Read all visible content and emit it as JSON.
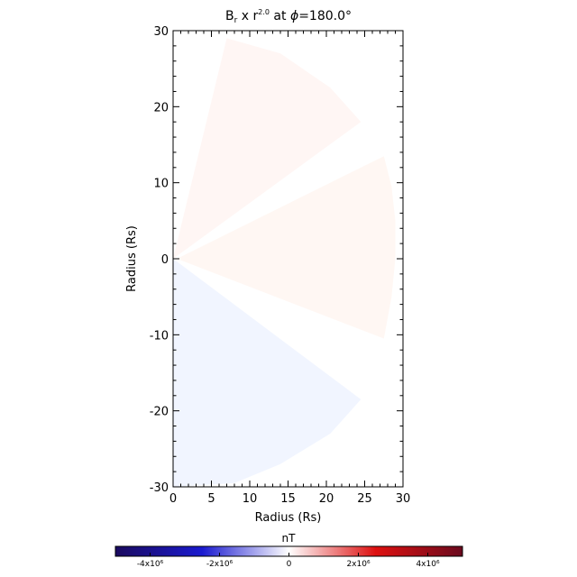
{
  "chart_data": {
    "type": "heatmap",
    "title": {
      "main": "B",
      "sub": "r",
      "mid": " x r",
      "sup": "2.0",
      "tail": " at ",
      "phi": "ϕ",
      "phi_value": "=180.0°"
    },
    "xlabel": "Radius (Rs)",
    "ylabel": "Radius (Rs)",
    "xlim": [
      0,
      30
    ],
    "ylim": [
      -30,
      30
    ],
    "x_ticks": [
      "0",
      "5",
      "10",
      "15",
      "20",
      "25",
      "30"
    ],
    "y_ticks": [
      "30",
      "20",
      "10",
      "0",
      "-10",
      "-20",
      "-30"
    ],
    "colorbar": {
      "label": "nT",
      "range": [
        -5000000,
        5000000
      ],
      "ticks": [
        {
          "value": -4000000,
          "label": "-4x10⁶"
        },
        {
          "value": -2000000,
          "label": "-2x10⁶"
        },
        {
          "value": 0,
          "label": "0"
        },
        {
          "value": 2000000,
          "label": "2x10⁶"
        },
        {
          "value": 4000000,
          "label": "4x10⁶"
        }
      ],
      "colors": [
        "#1a0a5e",
        "#1a1acf",
        "#ffffff",
        "#dd1010",
        "#6a0a1e"
      ]
    },
    "regions": [
      {
        "name": "north-sector",
        "sign": "positive",
        "color": "#fff6f4",
        "polygon": [
          [
            0,
            0
          ],
          [
            7.0,
            29.0
          ],
          [
            14.0,
            27.0
          ],
          [
            20.5,
            22.5
          ],
          [
            24.5,
            18.0
          ]
        ]
      },
      {
        "name": "equatorial-sector",
        "sign": "positive",
        "color": "#fff7f3",
        "polygon": [
          [
            0.5,
            0
          ],
          [
            27.5,
            13.5
          ],
          [
            28.5,
            9.5
          ],
          [
            29.0,
            5.0
          ],
          [
            29.0,
            0.0
          ],
          [
            28.5,
            -5.0
          ],
          [
            27.5,
            -10.5
          ]
        ]
      },
      {
        "name": "south-sector",
        "sign": "negative",
        "color": "#f1f5ff",
        "polygon": [
          [
            0,
            0
          ],
          [
            24.5,
            -18.5
          ],
          [
            20.5,
            -23.0
          ],
          [
            14.0,
            -27.0
          ],
          [
            8.0,
            -29.5
          ],
          [
            0,
            -30
          ]
        ]
      }
    ]
  }
}
